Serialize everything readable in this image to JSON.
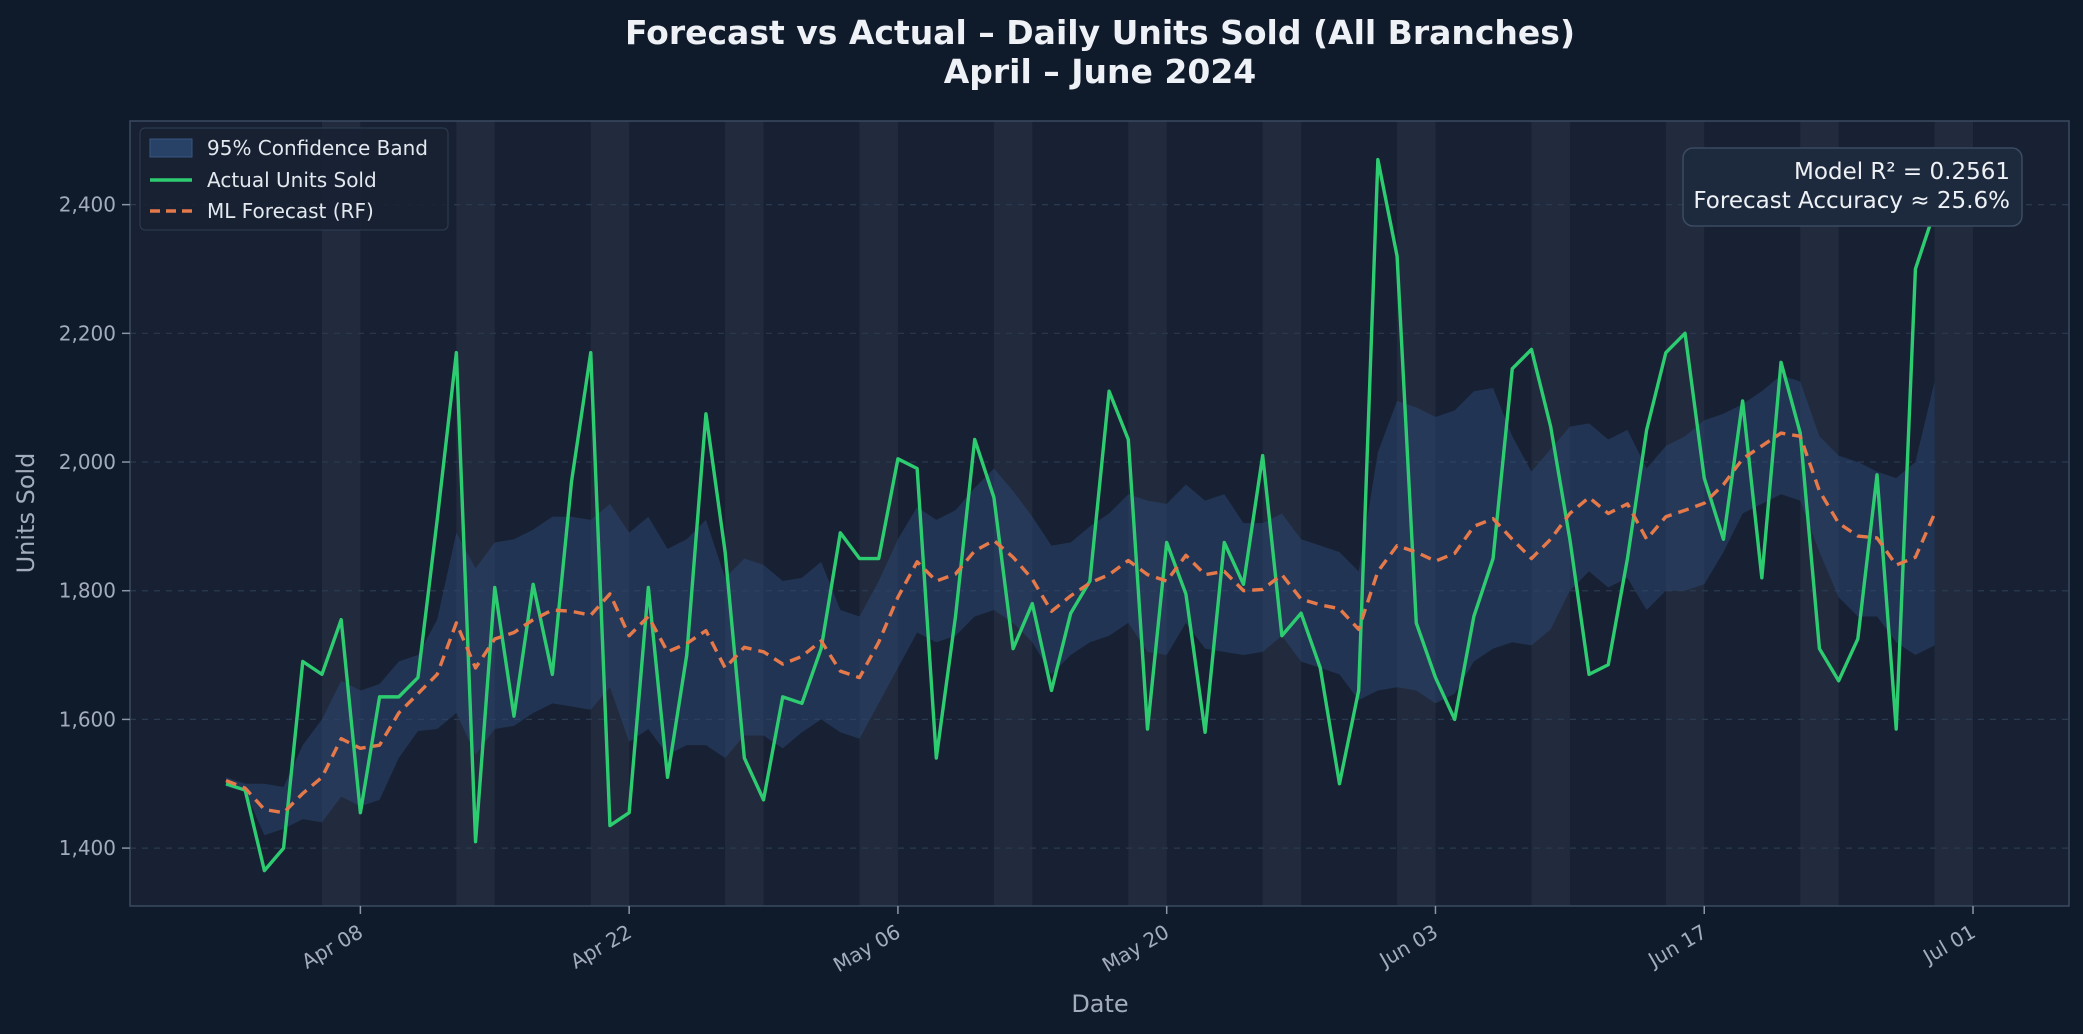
{
  "chart_data": {
    "type": "line",
    "title": "Forecast vs Actual – Daily Units Sold (All Branches)",
    "subtitle": "April – June 2024",
    "xlabel": "Date",
    "ylabel": "Units Sold",
    "start_date": "2024-04-01",
    "x_range": [
      "2024-03-27",
      "2024-07-06"
    ],
    "ylim": [
      1310,
      2530
    ],
    "x_ticks": [
      "2024-04-08",
      "2024-04-22",
      "2024-05-06",
      "2024-05-20",
      "2024-06-03",
      "2024-06-17",
      "2024-07-01"
    ],
    "x_tick_labels": [
      "Apr 08",
      "Apr 22",
      "May 06",
      "May 20",
      "Jun 03",
      "Jun 17",
      "Jul 01"
    ],
    "y_ticks": [
      1400,
      1600,
      1800,
      2000,
      2200,
      2400
    ],
    "y_tick_labels": [
      "1,400",
      "1,600",
      "1,800",
      "2,000",
      "2,200",
      "2,400"
    ],
    "grid": "horizontal dashed",
    "legend_position": "top-left",
    "weekend_shading": [
      {
        "start": "2024-04-06",
        "end": "2024-04-07"
      },
      {
        "start": "2024-04-13",
        "end": "2024-04-14"
      },
      {
        "start": "2024-04-20",
        "end": "2024-04-21"
      },
      {
        "start": "2024-04-27",
        "end": "2024-04-28"
      },
      {
        "start": "2024-05-04",
        "end": "2024-05-05"
      },
      {
        "start": "2024-05-11",
        "end": "2024-05-12"
      },
      {
        "start": "2024-05-18",
        "end": "2024-05-19"
      },
      {
        "start": "2024-05-25",
        "end": "2024-05-26"
      },
      {
        "start": "2024-06-01",
        "end": "2024-06-02"
      },
      {
        "start": "2024-06-08",
        "end": "2024-06-09"
      },
      {
        "start": "2024-06-15",
        "end": "2024-06-16"
      },
      {
        "start": "2024-06-22",
        "end": "2024-06-23"
      },
      {
        "start": "2024-06-29",
        "end": "2024-06-30"
      }
    ],
    "series": [
      {
        "name": "Actual Units Sold",
        "style": "solid",
        "color": "#2ecc71",
        "values": [
          1500,
          1490,
          1365,
          1400,
          1690,
          1670,
          1755,
          1455,
          1635,
          1635,
          1665,
          1910,
          2170,
          1410,
          1805,
          1605,
          1810,
          1670,
          1970,
          2170,
          1435,
          1455,
          1805,
          1510,
          1700,
          2075,
          1860,
          1540,
          1475,
          1635,
          1625,
          1710,
          1890,
          1850,
          1850,
          2005,
          1990,
          1540,
          1760,
          2035,
          1945,
          1710,
          1780,
          1645,
          1765,
          1815,
          2110,
          2035,
          1585,
          1875,
          1795,
          1580,
          1875,
          1810,
          2010,
          1730,
          1765,
          1680,
          1500,
          1645,
          2470,
          2320,
          1750,
          1665,
          1600,
          1760,
          1850,
          2145,
          2175,
          2055,
          1880,
          1670,
          1685,
          1850,
          2050,
          2170,
          2200,
          1975,
          1880,
          2095,
          1820,
          2155,
          2045,
          1710,
          1660,
          1725,
          1980,
          1585,
          2300,
          2390
        ]
      },
      {
        "name": "ML Forecast (RF)",
        "style": "dashed",
        "color": "#e5794a",
        "values": [
          1505,
          1493,
          1460,
          1455,
          1485,
          1510,
          1570,
          1555,
          1560,
          1610,
          1640,
          1670,
          1750,
          1680,
          1725,
          1735,
          1755,
          1770,
          1768,
          1762,
          1795,
          1730,
          1760,
          1705,
          1718,
          1738,
          1680,
          1712,
          1705,
          1686,
          1698,
          1722,
          1675,
          1665,
          1720,
          1790,
          1845,
          1815,
          1826,
          1862,
          1878,
          1852,
          1818,
          1768,
          1792,
          1812,
          1825,
          1847,
          1825,
          1815,
          1855,
          1825,
          1830,
          1800,
          1802,
          1825,
          1787,
          1778,
          1772,
          1740,
          1830,
          1870,
          1860,
          1846,
          1858,
          1900,
          1912,
          1880,
          1850,
          1880,
          1920,
          1945,
          1920,
          1935,
          1880,
          1915,
          1925,
          1936,
          1965,
          2005,
          2025,
          2045,
          2040,
          1955,
          1905,
          1885,
          1882,
          1840,
          1852,
          1920
        ]
      }
    ],
    "confidence_band": {
      "name": "95% Confidence Band",
      "lower": [
        1495,
        1488,
        1420,
        1430,
        1445,
        1440,
        1480,
        1465,
        1475,
        1540,
        1582,
        1585,
        1610,
        1545,
        1585,
        1590,
        1610,
        1625,
        1620,
        1615,
        1650,
        1565,
        1585,
        1545,
        1560,
        1560,
        1540,
        1575,
        1575,
        1555,
        1580,
        1600,
        1580,
        1570,
        1625,
        1680,
        1735,
        1720,
        1730,
        1760,
        1770,
        1750,
        1720,
        1670,
        1700,
        1720,
        1730,
        1750,
        1705,
        1700,
        1750,
        1710,
        1705,
        1700,
        1705,
        1730,
        1690,
        1680,
        1670,
        1630,
        1645,
        1650,
        1645,
        1625,
        1640,
        1690,
        1710,
        1720,
        1715,
        1740,
        1800,
        1830,
        1805,
        1820,
        1770,
        1800,
        1800,
        1810,
        1860,
        1920,
        1935,
        1950,
        1940,
        1860,
        1790,
        1760,
        1760,
        1720,
        1700,
        1715
      ],
      "upper": [
        1510,
        1500,
        1500,
        1495,
        1560,
        1600,
        1660,
        1645,
        1655,
        1690,
        1700,
        1755,
        1890,
        1835,
        1875,
        1880,
        1895,
        1915,
        1915,
        1910,
        1935,
        1890,
        1915,
        1865,
        1880,
        1910,
        1820,
        1850,
        1840,
        1815,
        1820,
        1845,
        1770,
        1760,
        1815,
        1880,
        1930,
        1910,
        1925,
        1960,
        1990,
        1955,
        1915,
        1870,
        1875,
        1900,
        1920,
        1950,
        1940,
        1935,
        1965,
        1940,
        1950,
        1905,
        1905,
        1920,
        1880,
        1870,
        1860,
        1830,
        2015,
        2095,
        2085,
        2070,
        2080,
        2110,
        2115,
        2040,
        1985,
        2020,
        2055,
        2060,
        2035,
        2050,
        1990,
        2025,
        2040,
        2065,
        2075,
        2090,
        2110,
        2135,
        2125,
        2040,
        2010,
        2000,
        1985,
        1975,
        2000,
        2125
      ]
    },
    "annotation": {
      "line1": "Model R² = 0.2561",
      "line2": "Forecast Accuracy ≈ 25.6%",
      "position": "top-right"
    },
    "colors": {
      "figure_bg": "#0f1a2b",
      "plot_bg": "#172133",
      "band": "#2c4670",
      "grid": "#2a3a50",
      "axis": "#3a4a60",
      "weekend": "#2a3446"
    }
  }
}
